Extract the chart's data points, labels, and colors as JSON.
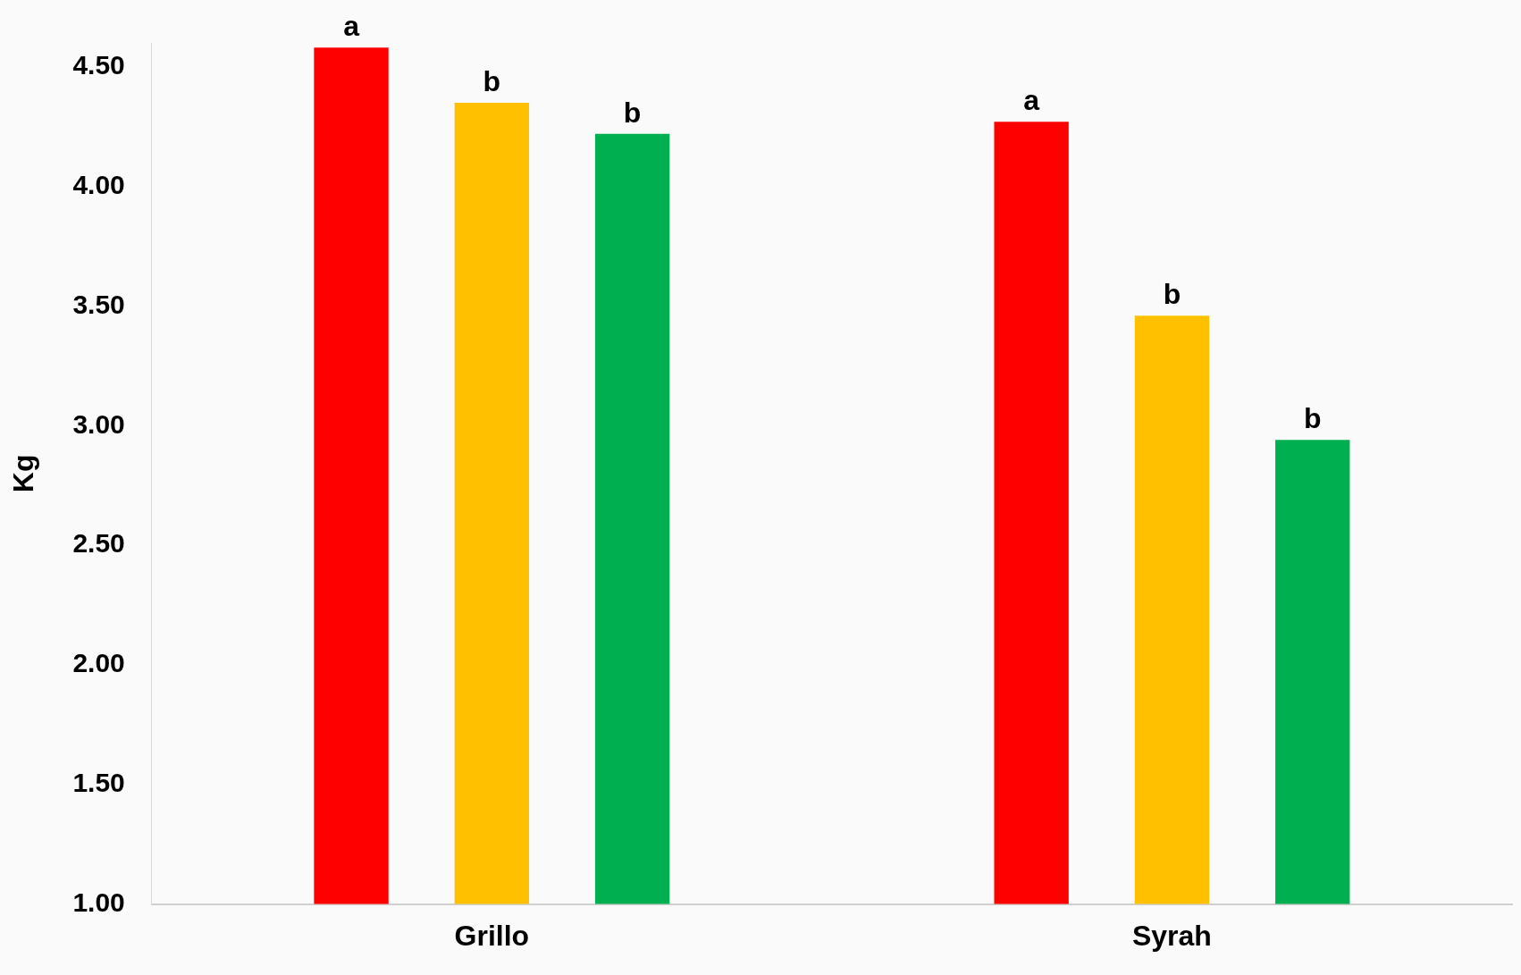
{
  "chart_data": {
    "type": "bar",
    "ylabel": "Kg",
    "categories": [
      "Grillo",
      "Syrah"
    ],
    "series": [
      {
        "color": "#ff0000",
        "values": [
          4.58,
          4.27
        ],
        "value_labels": [
          "a",
          "a"
        ]
      },
      {
        "color": "#ffc000",
        "values": [
          4.35,
          3.46
        ],
        "value_labels": [
          "b",
          "b"
        ]
      },
      {
        "color": "#00b050",
        "values": [
          4.22,
          2.94
        ],
        "value_labels": [
          "b",
          "b"
        ]
      }
    ],
    "ylim": [
      1,
      4.6
    ],
    "yticks": [
      {
        "value": 1,
        "label": "1.00"
      },
      {
        "value": 1.5,
        "label": "1.50"
      },
      {
        "value": 2,
        "label": "2.00"
      },
      {
        "value": 2.5,
        "label": "2.50"
      },
      {
        "value": 3,
        "label": "3.00"
      },
      {
        "value": 3.5,
        "label": "3.50"
      },
      {
        "value": 4,
        "label": "4.00"
      },
      {
        "value": 4.5,
        "label": "4.50"
      }
    ],
    "grid": false,
    "legend": false
  }
}
